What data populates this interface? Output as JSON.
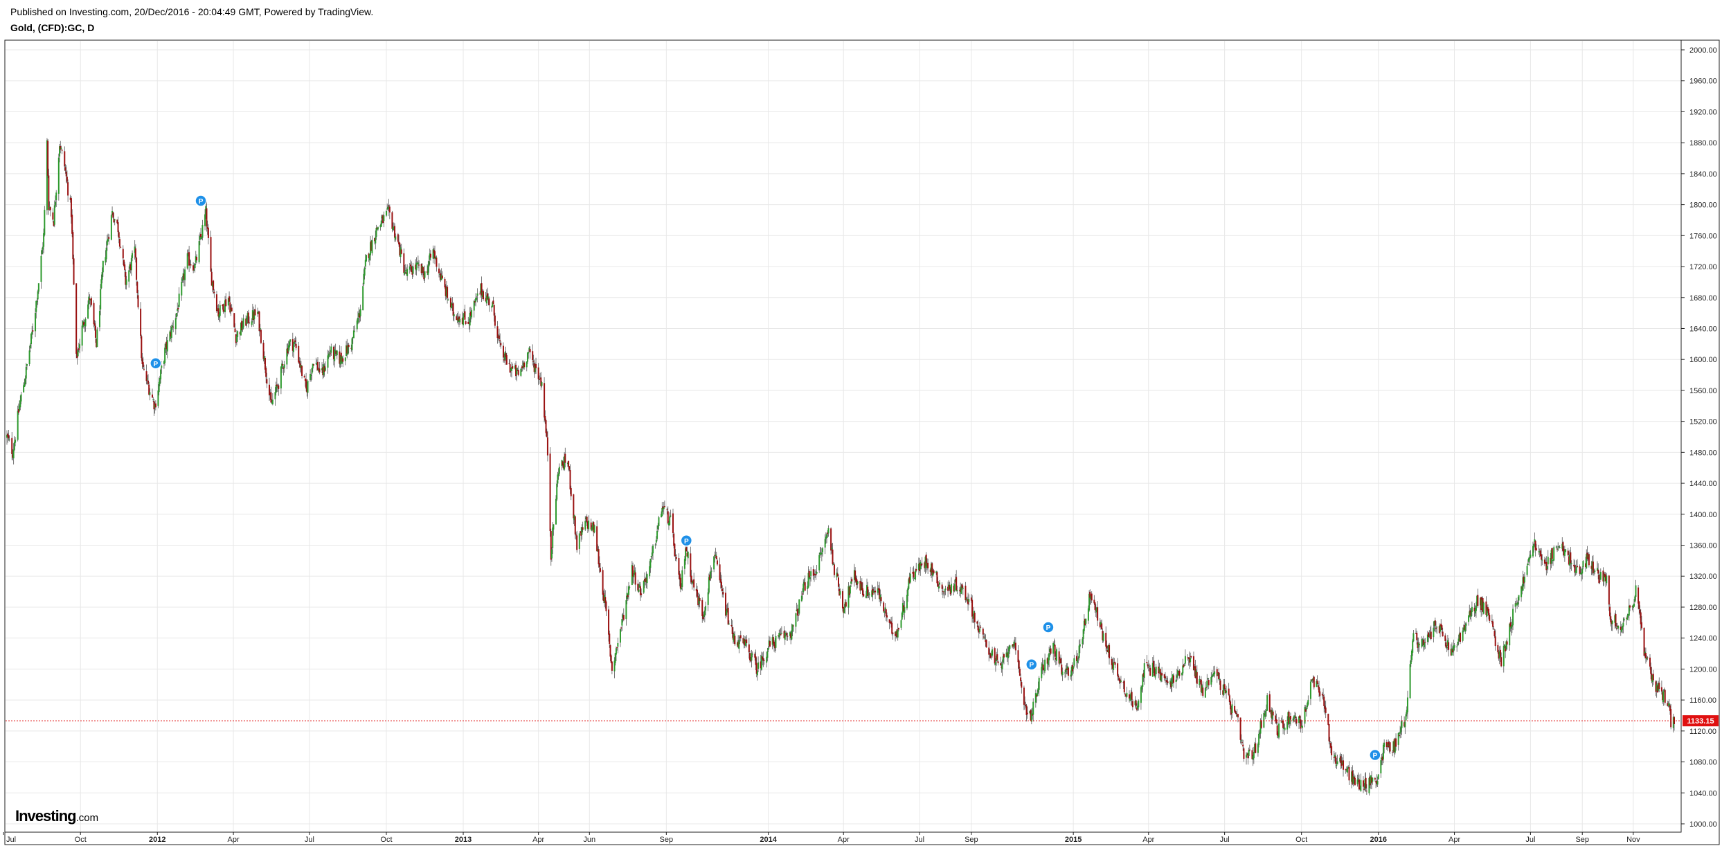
{
  "header": {
    "published": "Published on Investing.com, 20/Dec/2016 - 20:04:49 GMT, Powered by TradingView.",
    "symbol": "Gold, (CFD):GC, D"
  },
  "brand": {
    "name": "Investing",
    "suffix": ".com"
  },
  "colors": {
    "up": "#2e9a2e",
    "down": "#9a1111",
    "last_price_line": "#e01010",
    "marker": "#1e90e8",
    "grid": "#e8e8e8"
  },
  "chart_data": {
    "type": "candlestick",
    "interval": "D",
    "y_range": [
      1000,
      2000
    ],
    "y_ticks": [
      "2000.00",
      "1960.00",
      "1920.00",
      "1880.00",
      "1840.00",
      "1800.00",
      "1760.00",
      "1720.00",
      "1680.00",
      "1640.00",
      "1600.00",
      "1560.00",
      "1520.00",
      "1480.00",
      "1440.00",
      "1400.00",
      "1360.00",
      "1320.00",
      "1280.00",
      "1240.00",
      "1200.00",
      "1160.00",
      "1120.00",
      "1080.00",
      "1040.00",
      "1000.00"
    ],
    "x_range": [
      "2011-07-05",
      "2016-12-20"
    ],
    "x_ticks": [
      {
        "label": "Jul",
        "date": "2011-07-01"
      },
      {
        "label": "Oct",
        "date": "2011-10-01"
      },
      {
        "label": "2012",
        "date": "2012-01-01",
        "bold": true
      },
      {
        "label": "Apr",
        "date": "2012-04-01"
      },
      {
        "label": "Jul",
        "date": "2012-07-01"
      },
      {
        "label": "Oct",
        "date": "2012-10-01"
      },
      {
        "label": "2013",
        "date": "2013-01-01",
        "bold": true
      },
      {
        "label": "Apr",
        "date": "2013-04-01"
      },
      {
        "label": "Jun",
        "date": "2013-06-01"
      },
      {
        "label": "Sep",
        "date": "2013-09-01"
      },
      {
        "label": "2014",
        "date": "2014-01-01",
        "bold": true
      },
      {
        "label": "Apr",
        "date": "2014-04-01"
      },
      {
        "label": "Jul",
        "date": "2014-07-01"
      },
      {
        "label": "Sep",
        "date": "2014-09-01"
      },
      {
        "label": "2015",
        "date": "2015-01-01",
        "bold": true
      },
      {
        "label": "Apr",
        "date": "2015-04-01"
      },
      {
        "label": "Jul",
        "date": "2015-07-01"
      },
      {
        "label": "Oct",
        "date": "2015-10-01"
      },
      {
        "label": "2016",
        "date": "2016-01-01",
        "bold": true
      },
      {
        "label": "Apr",
        "date": "2016-04-01"
      },
      {
        "label": "Jul",
        "date": "2016-07-01"
      },
      {
        "label": "Sep",
        "date": "2016-09-01"
      },
      {
        "label": "Nov",
        "date": "2016-11-01"
      }
    ],
    "last_price": 1133.15,
    "last_price_label": "1133.15",
    "price_path": [
      [
        "2011-07-05",
        1500
      ],
      [
        "2011-07-12",
        1480
      ],
      [
        "2011-07-20",
        1540
      ],
      [
        "2011-07-28",
        1585
      ],
      [
        "2011-08-05",
        1640
      ],
      [
        "2011-08-12",
        1700
      ],
      [
        "2011-08-18",
        1760
      ],
      [
        "2011-08-22",
        1880
      ],
      [
        "2011-08-24",
        1800
      ],
      [
        "2011-08-30",
        1780
      ],
      [
        "2011-09-06",
        1880
      ],
      [
        "2011-09-12",
        1850
      ],
      [
        "2011-09-20",
        1790
      ],
      [
        "2011-09-26",
        1600
      ],
      [
        "2011-10-03",
        1640
      ],
      [
        "2011-10-12",
        1680
      ],
      [
        "2011-10-20",
        1620
      ],
      [
        "2011-10-28",
        1720
      ],
      [
        "2011-11-08",
        1790
      ],
      [
        "2011-11-15",
        1770
      ],
      [
        "2011-11-24",
        1700
      ],
      [
        "2011-12-05",
        1740
      ],
      [
        "2011-12-14",
        1590
      ],
      [
        "2011-12-29",
        1540
      ],
      [
        "2012-01-10",
        1610
      ],
      [
        "2012-01-24",
        1660
      ],
      [
        "2012-02-06",
        1730
      ],
      [
        "2012-02-15",
        1720
      ],
      [
        "2012-02-28",
        1790
      ],
      [
        "2012-03-05",
        1710
      ],
      [
        "2012-03-14",
        1660
      ],
      [
        "2012-03-26",
        1680
      ],
      [
        "2012-04-04",
        1630
      ],
      [
        "2012-04-16",
        1650
      ],
      [
        "2012-04-30",
        1660
      ],
      [
        "2012-05-08",
        1600
      ],
      [
        "2012-05-16",
        1540
      ],
      [
        "2012-05-25",
        1570
      ],
      [
        "2012-06-06",
        1620
      ],
      [
        "2012-06-14",
        1620
      ],
      [
        "2012-06-27",
        1560
      ],
      [
        "2012-07-06",
        1600
      ],
      [
        "2012-07-16",
        1580
      ],
      [
        "2012-07-25",
        1610
      ],
      [
        "2012-08-07",
        1600
      ],
      [
        "2012-08-20",
        1620
      ],
      [
        "2012-08-30",
        1660
      ],
      [
        "2012-09-07",
        1730
      ],
      [
        "2012-09-20",
        1770
      ],
      [
        "2012-10-04",
        1790
      ],
      [
        "2012-10-15",
        1750
      ],
      [
        "2012-10-24",
        1710
      ],
      [
        "2012-11-06",
        1720
      ],
      [
        "2012-11-16",
        1710
      ],
      [
        "2012-11-26",
        1740
      ],
      [
        "2012-12-07",
        1700
      ],
      [
        "2012-12-20",
        1660
      ],
      [
        "2013-01-07",
        1650
      ],
      [
        "2013-01-22",
        1690
      ],
      [
        "2013-02-05",
        1670
      ],
      [
        "2013-02-15",
        1610
      ],
      [
        "2013-02-26",
        1590
      ],
      [
        "2013-03-08",
        1580
      ],
      [
        "2013-03-20",
        1610
      ],
      [
        "2013-04-05",
        1570
      ],
      [
        "2013-04-12",
        1480
      ],
      [
        "2013-04-16",
        1350
      ],
      [
        "2013-04-25",
        1460
      ],
      [
        "2013-05-06",
        1470
      ],
      [
        "2013-05-17",
        1360
      ],
      [
        "2013-05-28",
        1390
      ],
      [
        "2013-06-07",
        1380
      ],
      [
        "2013-06-20",
        1280
      ],
      [
        "2013-06-28",
        1200
      ],
      [
        "2013-07-10",
        1260
      ],
      [
        "2013-07-22",
        1330
      ],
      [
        "2013-08-01",
        1300
      ],
      [
        "2013-08-12",
        1330
      ],
      [
        "2013-08-27",
        1410
      ],
      [
        "2013-09-06",
        1390
      ],
      [
        "2013-09-18",
        1300
      ],
      [
        "2013-09-24",
        1360
      ],
      [
        "2013-10-03",
        1310
      ],
      [
        "2013-10-15",
        1270
      ],
      [
        "2013-10-28",
        1350
      ],
      [
        "2013-11-08",
        1290
      ],
      [
        "2013-11-20",
        1240
      ],
      [
        "2013-12-05",
        1230
      ],
      [
        "2013-12-19",
        1200
      ],
      [
        "2014-01-02",
        1230
      ],
      [
        "2014-01-15",
        1240
      ],
      [
        "2014-01-30",
        1250
      ],
      [
        "2014-02-14",
        1310
      ],
      [
        "2014-02-28",
        1330
      ],
      [
        "2014-03-14",
        1380
      ],
      [
        "2014-03-21",
        1330
      ],
      [
        "2014-04-01",
        1280
      ],
      [
        "2014-04-14",
        1320
      ],
      [
        "2014-04-25",
        1300
      ],
      [
        "2014-05-12",
        1300
      ],
      [
        "2014-05-28",
        1250
      ],
      [
        "2014-06-05",
        1250
      ],
      [
        "2014-06-20",
        1320
      ],
      [
        "2014-07-10",
        1340
      ],
      [
        "2014-07-30",
        1300
      ],
      [
        "2014-08-15",
        1310
      ],
      [
        "2014-08-29",
        1290
      ],
      [
        "2014-09-10",
        1250
      ],
      [
        "2014-09-25",
        1220
      ],
      [
        "2014-10-06",
        1200
      ],
      [
        "2014-10-20",
        1240
      ],
      [
        "2014-11-05",
        1150
      ],
      [
        "2014-11-12",
        1140
      ],
      [
        "2014-11-25",
        1200
      ],
      [
        "2014-12-08",
        1230
      ],
      [
        "2014-12-20",
        1190
      ],
      [
        "2015-01-05",
        1210
      ],
      [
        "2015-01-22",
        1300
      ],
      [
        "2015-02-06",
        1240
      ],
      [
        "2015-02-20",
        1200
      ],
      [
        "2015-03-06",
        1170
      ],
      [
        "2015-03-17",
        1150
      ],
      [
        "2015-03-27",
        1200
      ],
      [
        "2015-04-10",
        1200
      ],
      [
        "2015-04-24",
        1180
      ],
      [
        "2015-05-05",
        1190
      ],
      [
        "2015-05-18",
        1220
      ],
      [
        "2015-06-05",
        1170
      ],
      [
        "2015-06-18",
        1200
      ],
      [
        "2015-07-01",
        1170
      ],
      [
        "2015-07-17",
        1130
      ],
      [
        "2015-07-24",
        1085
      ],
      [
        "2015-08-05",
        1090
      ],
      [
        "2015-08-21",
        1160
      ],
      [
        "2015-09-03",
        1120
      ],
      [
        "2015-09-18",
        1140
      ],
      [
        "2015-10-02",
        1130
      ],
      [
        "2015-10-14",
        1185
      ],
      [
        "2015-10-28",
        1160
      ],
      [
        "2015-11-06",
        1090
      ],
      [
        "2015-11-20",
        1075
      ],
      [
        "2015-12-03",
        1055
      ],
      [
        "2015-12-17",
        1050
      ],
      [
        "2015-12-31",
        1060
      ],
      [
        "2016-01-08",
        1100
      ],
      [
        "2016-01-20",
        1100
      ],
      [
        "2016-02-03",
        1140
      ],
      [
        "2016-02-11",
        1240
      ],
      [
        "2016-02-26",
        1230
      ],
      [
        "2016-03-10",
        1260
      ],
      [
        "2016-03-28",
        1220
      ],
      [
        "2016-04-12",
        1250
      ],
      [
        "2016-04-29",
        1290
      ],
      [
        "2016-05-12",
        1270
      ],
      [
        "2016-05-27",
        1210
      ],
      [
        "2016-06-10",
        1270
      ],
      [
        "2016-06-24",
        1320
      ],
      [
        "2016-07-06",
        1365
      ],
      [
        "2016-07-18",
        1330
      ],
      [
        "2016-08-02",
        1360
      ],
      [
        "2016-08-15",
        1345
      ],
      [
        "2016-08-29",
        1320
      ],
      [
        "2016-09-07",
        1345
      ],
      [
        "2016-09-20",
        1320
      ],
      [
        "2016-09-30",
        1320
      ],
      [
        "2016-10-04",
        1270
      ],
      [
        "2016-10-14",
        1255
      ],
      [
        "2016-10-26",
        1270
      ],
      [
        "2016-11-04",
        1300
      ],
      [
        "2016-11-09",
        1275
      ],
      [
        "2016-11-14",
        1220
      ],
      [
        "2016-11-24",
        1185
      ],
      [
        "2016-12-05",
        1170
      ],
      [
        "2016-12-13",
        1160
      ],
      [
        "2016-12-16",
        1130
      ],
      [
        "2016-12-20",
        1133.15
      ]
    ],
    "markers": [
      {
        "label": "P",
        "date": "2011-12-30",
        "price": 1595
      },
      {
        "label": "P",
        "date": "2012-02-22",
        "price": 1805
      },
      {
        "label": "P",
        "date": "2013-09-25",
        "price": 1366
      },
      {
        "label": "P",
        "date": "2014-11-12",
        "price": 1206
      },
      {
        "label": "P",
        "date": "2014-12-02",
        "price": 1254
      },
      {
        "label": "P",
        "date": "2015-12-28",
        "price": 1089
      }
    ]
  }
}
